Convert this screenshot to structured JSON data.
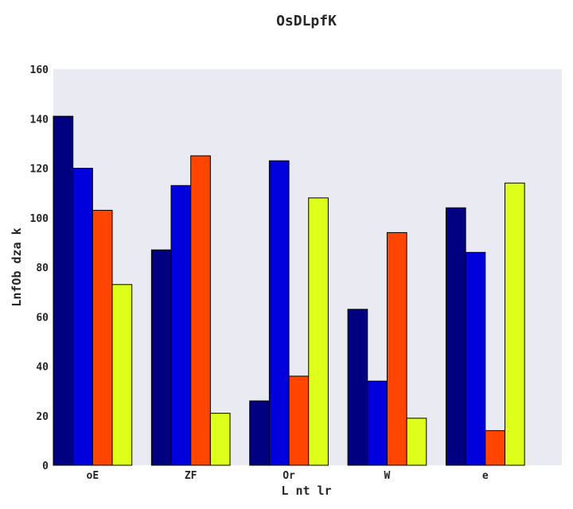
{
  "chart_data": {
    "type": "bar",
    "title": "OsDLpfK",
    "xlabel": "L nt lr",
    "ylabel": "LnfOb dza  k",
    "categories": [
      "oE",
      "ZF",
      "Or",
      "W",
      "e"
    ],
    "series": [
      {
        "values": [
          141,
          87,
          26,
          63,
          104
        ],
        "color": "#000080"
      },
      {
        "values": [
          120,
          113,
          123,
          34,
          86
        ],
        "color": "#0000dd"
      },
      {
        "values": [
          103,
          125,
          36,
          94,
          14
        ],
        "color": "#ff4500"
      },
      {
        "values": [
          73,
          21,
          108,
          19,
          114
        ],
        "color": "#ddff1a"
      }
    ],
    "ylim": [
      0,
      160
    ],
    "yticks": [
      0,
      20,
      40,
      60,
      80,
      100,
      120,
      140,
      160
    ],
    "plot_background": "#eaeaf2",
    "grid": false,
    "legend": "none"
  }
}
